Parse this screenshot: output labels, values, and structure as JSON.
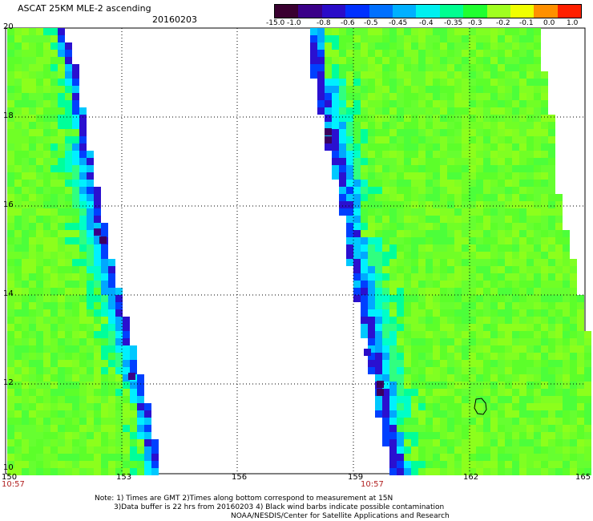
{
  "header": {
    "title": "ASCAT 25KM MLE-2 ascending",
    "date": "20160203"
  },
  "colorbar": {
    "labels": [
      "-15.0",
      "-1.0",
      "-0.8",
      "-0.6",
      "-0.5",
      "-0.45",
      "-0.4",
      "-0.35",
      "-0.3",
      "-0.2",
      "-0.1",
      "0.0",
      "1.0"
    ],
    "colors": [
      "#3a0030",
      "#3a0088",
      "#2a0cc8",
      "#0030ff",
      "#0070ff",
      "#00b0ff",
      "#00f0f0",
      "#00ff90",
      "#20ff30",
      "#a0ff20",
      "#f0ff00",
      "#ff9000",
      "#ff2000"
    ]
  },
  "map": {
    "x_ticks": [
      "150",
      "153",
      "156",
      "159",
      "162",
      "165"
    ],
    "y_ticks": [
      "20",
      "18",
      "16",
      "14",
      "12",
      "10"
    ],
    "pass_times": [
      "10:57",
      "10:57"
    ]
  },
  "notes": {
    "line1": "Note: 1) Times are GMT 2)Times along bottom correspond to measurement at 15N",
    "line2": "3)Data buffer is 22 hrs from 20160203 4) Black wind barbs indicate possible contamination",
    "line3": "NOAA/NESDIS/Center for Satellite Applications and Research"
  }
}
